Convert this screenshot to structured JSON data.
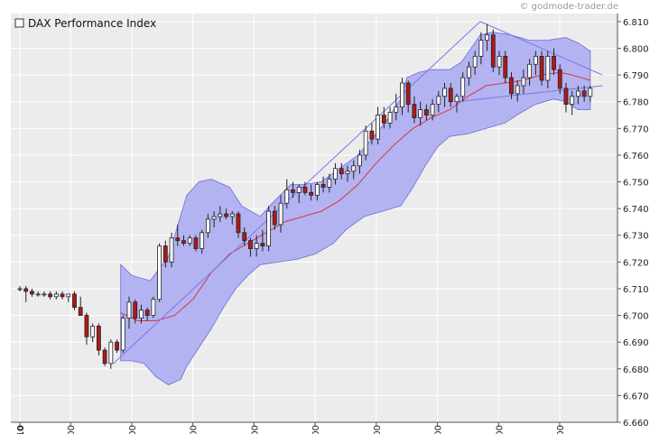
{
  "chart_data": {
    "type": "candlestick",
    "title": "DAX Performance Index",
    "credit": "© godmode-trader.de",
    "y_ticks": [
      "6.660",
      "6.670",
      "6.680",
      "6.690",
      "6.700",
      "6.710",
      "6.720",
      "6.730",
      "6.740",
      "6.750",
      "6.760",
      "6.770",
      "6.780",
      "6.790",
      "6.800",
      "6.810"
    ],
    "y_min": 6660,
    "y_max": 6813,
    "x_start_hour": 8.17,
    "x_end_hour": 17.7,
    "x_ticks": [
      {
        "hour": 8.17,
        "label": "08:10",
        "bold": true
      },
      {
        "hour": 9,
        "label": "09:00",
        "bold": false
      },
      {
        "hour": 10,
        "label": "10:00",
        "bold": false
      },
      {
        "hour": 11,
        "label": "11:00",
        "bold": false
      },
      {
        "hour": 12,
        "label": "12:00",
        "bold": false
      },
      {
        "hour": 13,
        "label": "13:00",
        "bold": false
      },
      {
        "hour": 14,
        "label": "14:00",
        "bold": false
      },
      {
        "hour": 15,
        "label": "15:00",
        "bold": false
      },
      {
        "hour": 16,
        "label": "16:00",
        "bold": false
      },
      {
        "hour": 17,
        "label": "17:00",
        "bold": false
      }
    ],
    "colors": {
      "plot_bg": "#ececec",
      "grid": "#ffffff",
      "band_fill": "#a9a9f2",
      "band_stroke": "#6c6cd8",
      "ma_line": "#d9383f",
      "trend_line": "#7878e8",
      "up_body": "#ffffff",
      "down_body": "#b01818",
      "wick": "#222222"
    },
    "candles_ohlc": [
      [
        6710,
        6711,
        6709,
        6710
      ],
      [
        6710,
        6711,
        6705,
        6709
      ],
      [
        6709,
        6710,
        6707,
        6708
      ],
      [
        6708,
        6709,
        6707,
        6708
      ],
      [
        6708,
        6709,
        6707,
        6708
      ],
      [
        6708,
        6709,
        6706,
        6707
      ],
      [
        6707,
        6709,
        6706,
        6708
      ],
      [
        6708,
        6709,
        6706,
        6707
      ],
      [
        6707,
        6708,
        6705,
        6708
      ],
      [
        6708,
        6709,
        6702,
        6703
      ],
      [
        6703,
        6707,
        6700,
        6700
      ],
      [
        6700,
        6701,
        6689,
        6692
      ],
      [
        6692,
        6697,
        6690,
        6696
      ],
      [
        6696,
        6697,
        6685,
        6687
      ],
      [
        6687,
        6688,
        6681,
        6682
      ],
      [
        6682,
        6691,
        6680,
        6690
      ],
      [
        6690,
        6691,
        6686,
        6687
      ],
      [
        6687,
        6700,
        6686,
        6699
      ],
      [
        6699,
        6707,
        6695,
        6705
      ],
      [
        6705,
        6706,
        6697,
        6699
      ],
      [
        6699,
        6704,
        6697,
        6702
      ],
      [
        6702,
        6703,
        6698,
        6700
      ],
      [
        6700,
        6707,
        6699,
        6706
      ],
      [
        6706,
        6727,
        6705,
        6726
      ],
      [
        6726,
        6728,
        6718,
        6720
      ],
      [
        6720,
        6731,
        6718,
        6729
      ],
      [
        6729,
        6734,
        6726,
        6728
      ],
      [
        6728,
        6730,
        6726,
        6727
      ],
      [
        6727,
        6730,
        6726,
        6729
      ],
      [
        6729,
        6730,
        6724,
        6725
      ],
      [
        6725,
        6732,
        6723,
        6731
      ],
      [
        6731,
        6738,
        6729,
        6736
      ],
      [
        6736,
        6739,
        6733,
        6737
      ],
      [
        6737,
        6741,
        6735,
        6738
      ],
      [
        6738,
        6740,
        6736,
        6737
      ],
      [
        6737,
        6739,
        6734,
        6738
      ],
      [
        6738,
        6739,
        6729,
        6731
      ],
      [
        6731,
        6733,
        6726,
        6728
      ],
      [
        6728,
        6729,
        6722,
        6725
      ],
      [
        6725,
        6730,
        6722,
        6727
      ],
      [
        6727,
        6732,
        6724,
        6726
      ],
      [
        6726,
        6741,
        6724,
        6739
      ],
      [
        6739,
        6741,
        6732,
        6734
      ],
      [
        6734,
        6745,
        6731,
        6742
      ],
      [
        6742,
        6751,
        6740,
        6747
      ],
      [
        6747,
        6750,
        6744,
        6746
      ],
      [
        6746,
        6749,
        6742,
        6748
      ],
      [
        6748,
        6750,
        6745,
        6746
      ],
      [
        6746,
        6749,
        6743,
        6745
      ],
      [
        6745,
        6750,
        6743,
        6749
      ],
      [
        6749,
        6752,
        6746,
        6748
      ],
      [
        6748,
        6753,
        6746,
        6751
      ],
      [
        6751,
        6757,
        6749,
        6755
      ],
      [
        6755,
        6757,
        6751,
        6753
      ],
      [
        6753,
        6756,
        6750,
        6754
      ],
      [
        6754,
        6758,
        6751,
        6756
      ],
      [
        6756,
        6762,
        6753,
        6760
      ],
      [
        6760,
        6771,
        6758,
        6769
      ],
      [
        6769,
        6772,
        6764,
        6766
      ],
      [
        6766,
        6778,
        6764,
        6775
      ],
      [
        6775,
        6778,
        6770,
        6772
      ],
      [
        6772,
        6778,
        6770,
        6776
      ],
      [
        6776,
        6783,
        6773,
        6778
      ],
      [
        6778,
        6789,
        6775,
        6787
      ],
      [
        6787,
        6788,
        6776,
        6779
      ],
      [
        6779,
        6782,
        6772,
        6774
      ],
      [
        6774,
        6780,
        6771,
        6777
      ],
      [
        6777,
        6779,
        6773,
        6775
      ],
      [
        6775,
        6781,
        6773,
        6779
      ],
      [
        6779,
        6784,
        6776,
        6782
      ],
      [
        6782,
        6787,
        6778,
        6785
      ],
      [
        6785,
        6787,
        6778,
        6780
      ],
      [
        6780,
        6783,
        6776,
        6782
      ],
      [
        6782,
        6791,
        6780,
        6789
      ],
      [
        6789,
        6795,
        6786,
        6793
      ],
      [
        6793,
        6799,
        6790,
        6797
      ],
      [
        6797,
        6806,
        6794,
        6803
      ],
      [
        6803,
        6809,
        6799,
        6805
      ],
      [
        6805,
        6807,
        6791,
        6793
      ],
      [
        6793,
        6799,
        6790,
        6797
      ],
      [
        6797,
        6799,
        6787,
        6789
      ],
      [
        6789,
        6791,
        6781,
        6783
      ],
      [
        6783,
        6788,
        6780,
        6786
      ],
      [
        6786,
        6792,
        6783,
        6789
      ],
      [
        6789,
        6796,
        6786,
        6794
      ],
      [
        6794,
        6799,
        6790,
        6797
      ],
      [
        6797,
        6799,
        6786,
        6788
      ],
      [
        6788,
        6799,
        6785,
        6797
      ],
      [
        6797,
        6800,
        6790,
        6792
      ],
      [
        6792,
        6794,
        6783,
        6785
      ],
      [
        6785,
        6787,
        6776,
        6779
      ],
      [
        6779,
        6784,
        6775,
        6782
      ],
      [
        6782,
        6786,
        6779,
        6784
      ],
      [
        6784,
        6786,
        6780,
        6782
      ],
      [
        6782,
        6786,
        6780,
        6785
      ]
    ],
    "ma_line": [
      [
        9.82,
        6701
      ],
      [
        10.1,
        6698
      ],
      [
        10.4,
        6698
      ],
      [
        10.7,
        6700
      ],
      [
        11.0,
        6706
      ],
      [
        11.3,
        6716
      ],
      [
        11.6,
        6723
      ],
      [
        11.9,
        6727
      ],
      [
        12.2,
        6731
      ],
      [
        12.5,
        6735
      ],
      [
        12.8,
        6737
      ],
      [
        13.1,
        6739
      ],
      [
        13.4,
        6743
      ],
      [
        13.7,
        6749
      ],
      [
        14.0,
        6757
      ],
      [
        14.3,
        6764
      ],
      [
        14.6,
        6770
      ],
      [
        14.9,
        6774
      ],
      [
        15.2,
        6777
      ],
      [
        15.5,
        6782
      ],
      [
        15.8,
        6786
      ],
      [
        16.1,
        6787
      ],
      [
        16.4,
        6788
      ],
      [
        16.7,
        6790
      ],
      [
        17.0,
        6791
      ],
      [
        17.2,
        6790
      ],
      [
        17.5,
        6788
      ]
    ],
    "band_upper": [
      [
        9.82,
        6719
      ],
      [
        10.0,
        6715
      ],
      [
        10.3,
        6713
      ],
      [
        10.6,
        6722
      ],
      [
        10.9,
        6745
      ],
      [
        11.1,
        6750
      ],
      [
        11.3,
        6751
      ],
      [
        11.6,
        6748
      ],
      [
        11.8,
        6741
      ],
      [
        12.1,
        6737
      ],
      [
        12.3,
        6742
      ],
      [
        12.6,
        6749
      ],
      [
        12.8,
        6749
      ],
      [
        13.1,
        6750
      ],
      [
        13.4,
        6755
      ],
      [
        13.7,
        6760
      ],
      [
        14.0,
        6768
      ],
      [
        14.2,
        6774
      ],
      [
        14.4,
        6781
      ],
      [
        14.5,
        6789
      ],
      [
        14.7,
        6791
      ],
      [
        14.9,
        6792
      ],
      [
        15.2,
        6792
      ],
      [
        15.4,
        6795
      ],
      [
        15.7,
        6805
      ],
      [
        15.9,
        6806
      ],
      [
        16.2,
        6805
      ],
      [
        16.5,
        6803
      ],
      [
        16.8,
        6803
      ],
      [
        17.1,
        6804
      ],
      [
        17.3,
        6802
      ],
      [
        17.5,
        6799
      ]
    ],
    "band_lower": [
      [
        17.5,
        6777
      ],
      [
        17.3,
        6777
      ],
      [
        17.1,
        6780
      ],
      [
        16.9,
        6781
      ],
      [
        16.6,
        6779
      ],
      [
        16.3,
        6775
      ],
      [
        16.1,
        6772
      ],
      [
        15.8,
        6770
      ],
      [
        15.5,
        6768
      ],
      [
        15.2,
        6767
      ],
      [
        15.0,
        6763
      ],
      [
        14.8,
        6756
      ],
      [
        14.6,
        6748
      ],
      [
        14.4,
        6741
      ],
      [
        14.1,
        6739
      ],
      [
        13.8,
        6737
      ],
      [
        13.5,
        6732
      ],
      [
        13.3,
        6727
      ],
      [
        13.0,
        6723
      ],
      [
        12.7,
        6721
      ],
      [
        12.4,
        6720
      ],
      [
        12.1,
        6719
      ],
      [
        11.9,
        6715
      ],
      [
        11.7,
        6710
      ],
      [
        11.5,
        6703
      ],
      [
        11.3,
        6695
      ],
      [
        11.1,
        6688
      ],
      [
        10.9,
        6681
      ],
      [
        10.8,
        6676
      ],
      [
        10.6,
        6674
      ],
      [
        10.4,
        6677
      ],
      [
        10.2,
        6682
      ],
      [
        10.0,
        6683
      ],
      [
        9.82,
        6683
      ]
    ],
    "trend_lines": [
      [
        [
          9.7,
          6682
        ],
        [
          15.7,
          6810
        ]
      ],
      [
        [
          15.7,
          6810
        ],
        [
          17.7,
          6790
        ]
      ],
      [
        [
          15.3,
          6780
        ],
        [
          17.7,
          6786
        ]
      ]
    ]
  }
}
